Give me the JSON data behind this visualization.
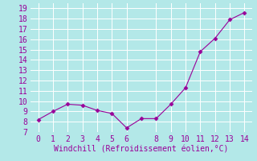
{
  "x": [
    0,
    1,
    2,
    3,
    4,
    5,
    6,
    7,
    8,
    9,
    10,
    11,
    12,
    13,
    14
  ],
  "y": [
    8.2,
    9.0,
    9.7,
    9.6,
    9.1,
    8.8,
    7.4,
    8.3,
    8.3,
    9.7,
    11.3,
    14.8,
    16.1,
    17.9,
    18.6
  ],
  "line_color": "#990099",
  "marker": "D",
  "marker_size": 2.5,
  "xlabel": "Windchill (Refroidissement éolien,°C)",
  "xlabel_color": "#990099",
  "background_color": "#b3e8e8",
  "grid_color": "#ffffff",
  "tick_color": "#990099",
  "xlim": [
    -0.5,
    14.5
  ],
  "ylim": [
    7,
    19.5
  ],
  "yticks": [
    7,
    8,
    9,
    10,
    11,
    12,
    13,
    14,
    15,
    16,
    17,
    18,
    19
  ],
  "xticks": [
    0,
    1,
    2,
    3,
    4,
    5,
    6,
    8,
    9,
    10,
    11,
    12,
    13,
    14
  ],
  "xlabel_fontsize": 7,
  "tick_fontsize": 7,
  "linewidth": 0.8
}
